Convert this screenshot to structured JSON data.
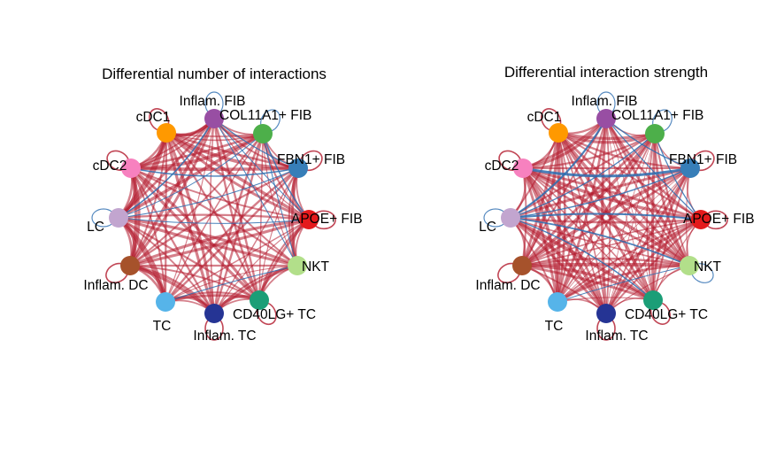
{
  "colors": {
    "increase": "#b2182b",
    "decrease": "#2c6db0",
    "background": "#ffffff"
  },
  "panels": [
    {
      "title": "Differential number of interactions",
      "nodes": [
        {
          "label": "Inflam. FIB",
          "color": "#984ea3",
          "self_loop": "decrease"
        },
        {
          "label": "COL11A1+ FIB",
          "color": "#4daf4a",
          "self_loop": "decrease"
        },
        {
          "label": "FBN1+ FIB",
          "color": "#377eb8",
          "self_loop": "increase"
        },
        {
          "label": "APOE+ FIB",
          "color": "#e41a1c",
          "self_loop": "increase"
        },
        {
          "label": "NKT",
          "color": "#b2df8a",
          "self_loop": "none"
        },
        {
          "label": "CD40LG+ TC",
          "color": "#1b9e77",
          "self_loop": "increase"
        },
        {
          "label": "Inflam. TC",
          "color": "#253494",
          "self_loop": "increase"
        },
        {
          "label": "TC",
          "color": "#56b4e9",
          "self_loop": "none"
        },
        {
          "label": "Inflam. DC",
          "color": "#a6522b",
          "self_loop": "increase"
        },
        {
          "label": "LC",
          "color": "#c2a5cf",
          "self_loop": "decrease"
        },
        {
          "label": "cDC2",
          "color": "#f781bf",
          "self_loop": "increase"
        },
        {
          "label": "cDC1",
          "color": "#ff9900",
          "self_loop": "increase"
        }
      ]
    },
    {
      "title": "Differential interaction strength",
      "nodes": [
        {
          "label": "Inflam. FIB",
          "color": "#984ea3",
          "self_loop": "decrease"
        },
        {
          "label": "COL11A1+ FIB",
          "color": "#4daf4a",
          "self_loop": "decrease"
        },
        {
          "label": "FBN1+ FIB",
          "color": "#377eb8",
          "self_loop": "increase"
        },
        {
          "label": "APOE+ FIB",
          "color": "#e41a1c",
          "self_loop": "increase"
        },
        {
          "label": "NKT",
          "color": "#b2df8a",
          "self_loop": "decrease"
        },
        {
          "label": "CD40LG+ TC",
          "color": "#1b9e77",
          "self_loop": "increase"
        },
        {
          "label": "Inflam. TC",
          "color": "#253494",
          "self_loop": "increase"
        },
        {
          "label": "TC",
          "color": "#56b4e9",
          "self_loop": "none"
        },
        {
          "label": "Inflam. DC",
          "color": "#a6522b",
          "self_loop": "increase"
        },
        {
          "label": "LC",
          "color": "#c2a5cf",
          "self_loop": "decrease"
        },
        {
          "label": "cDC2",
          "color": "#f781bf",
          "self_loop": "increase"
        },
        {
          "label": "cDC1",
          "color": "#ff9900",
          "self_loop": "increase"
        }
      ]
    }
  ]
}
